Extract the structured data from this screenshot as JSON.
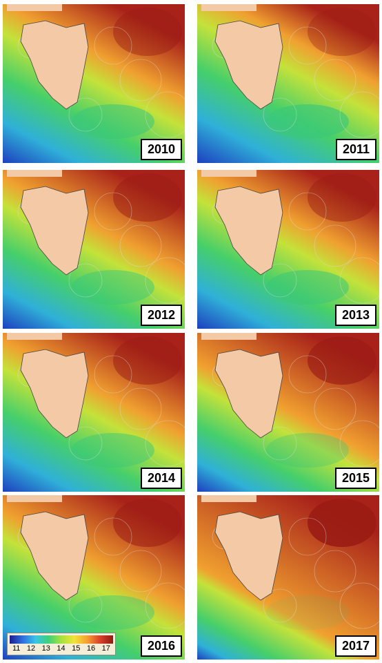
{
  "panels": [
    {
      "year": "2010"
    },
    {
      "year": "2011"
    },
    {
      "year": "2012"
    },
    {
      "year": "2013"
    },
    {
      "year": "2014"
    },
    {
      "year": "2015"
    },
    {
      "year": "2016"
    },
    {
      "year": "2017"
    }
  ],
  "colorbar": {
    "panel": 6,
    "ticks": [
      11,
      12,
      13,
      14,
      15,
      16,
      17
    ]
  }
}
